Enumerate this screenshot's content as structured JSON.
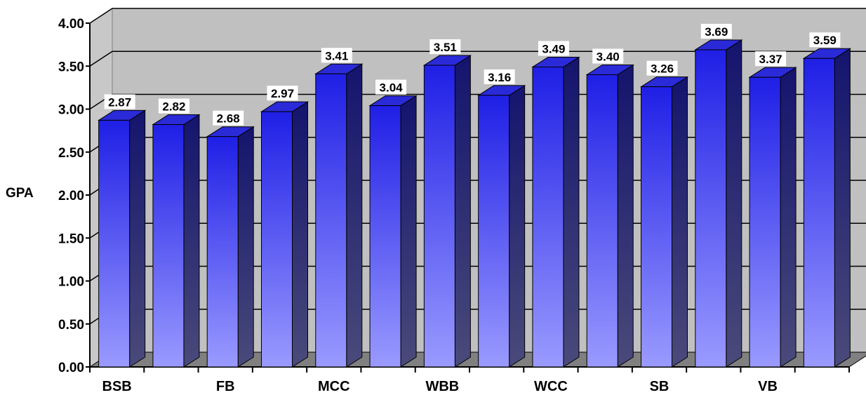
{
  "chart_data": {
    "type": "bar",
    "style": "3d-column",
    "ylabel": "GPA",
    "ylim": [
      0,
      4
    ],
    "yticks": [
      "0.00",
      "0.50",
      "1.00",
      "1.50",
      "2.00",
      "2.50",
      "3.00",
      "3.50",
      "4.00"
    ],
    "x_tick_labels": [
      "BSB",
      "",
      "FB",
      "",
      "MCC",
      "",
      "WBB",
      "",
      "WCC",
      "",
      "SB",
      "",
      "VB",
      ""
    ],
    "values": [
      2.87,
      2.82,
      2.68,
      2.97,
      3.41,
      3.04,
      3.51,
      3.16,
      3.49,
      3.4,
      3.26,
      3.69,
      3.37,
      3.59
    ],
    "data_labels": [
      "2.87",
      "2.82",
      "2.68",
      "2.97",
      "3.41",
      "3.04",
      "3.51",
      "3.16",
      "3.49",
      "3.40",
      "3.26",
      "3.69",
      "3.37",
      "3.59"
    ],
    "grid": true,
    "colors": {
      "plot_background": "#c0c0c0",
      "floor": "#808080",
      "bar_top": "#1f1fe6",
      "bar_bottom": "#9a9aff",
      "bar_side": "#16166e",
      "bar_cap": "#2a2ad8"
    }
  }
}
